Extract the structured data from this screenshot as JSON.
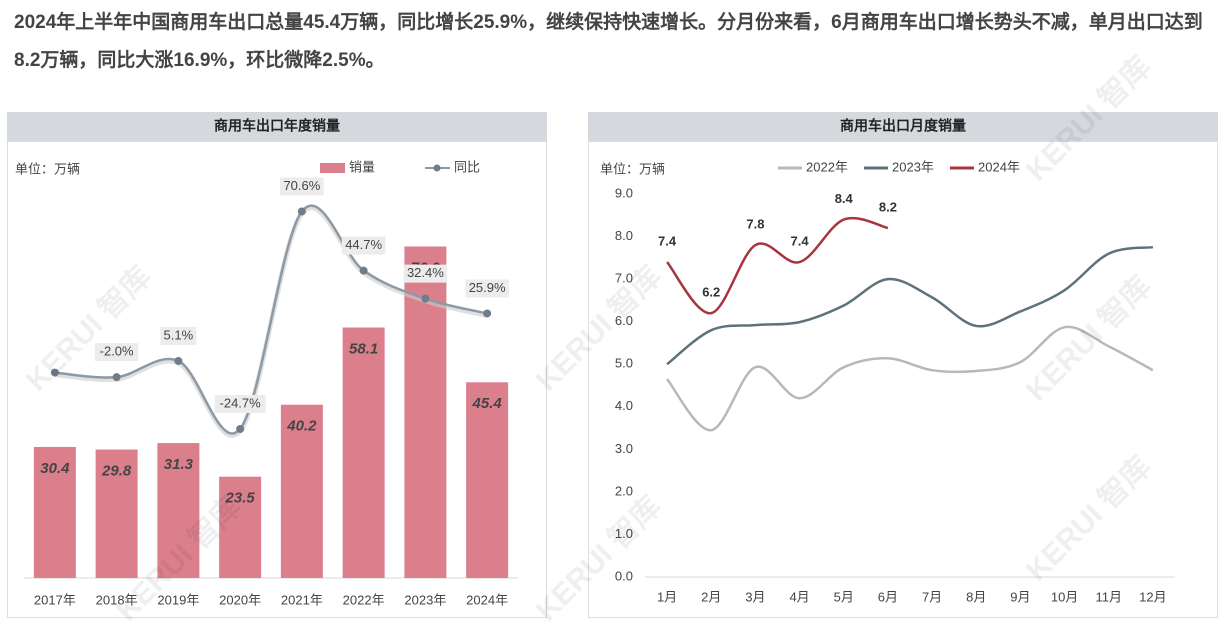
{
  "header": {
    "text": "2024年上半年中国商用车出口总量45.4万辆，同比增长25.9%，继续保持快速增长。分月份来看，6月商用车出口增长势头不减，单月出口达到8.2万辆，同比大涨16.9%，环比微降2.5%。"
  },
  "watermark": "KERUI 智库",
  "chart_data": [
    {
      "type": "bar",
      "title": "商用车出口年度销量",
      "unit_label": "单位：万辆",
      "categories": [
        "2017年",
        "2018年",
        "2019年",
        "2020年",
        "2021年",
        "2022年",
        "2023年",
        "2024年"
      ],
      "ylim": [
        0,
        90
      ],
      "y2lim": [
        -90,
        80
      ],
      "series": [
        {
          "name": "销量",
          "color": "#db7f8d",
          "values": [
            30.4,
            29.8,
            31.3,
            23.5,
            40.2,
            58.1,
            76.9,
            45.4
          ]
        },
        {
          "name": "同比",
          "color": "#8e99a6",
          "type": "line",
          "axis": "y2",
          "values": [
            0,
            -2.0,
            5.1,
            -24.7,
            70.6,
            44.7,
            32.4,
            25.9
          ],
          "value_labels": [
            null,
            "-2.0%",
            "5.1%",
            "-24.7%",
            "70.6%",
            "44.7%",
            "32.4%",
            "25.9%"
          ]
        }
      ]
    },
    {
      "type": "line",
      "title": "商用车出口月度销量",
      "unit_label": "单位：万辆",
      "categories": [
        "1月",
        "2月",
        "3月",
        "4月",
        "5月",
        "6月",
        "7月",
        "8月",
        "9月",
        "10月",
        "11月",
        "12月"
      ],
      "ylim": [
        0,
        9
      ],
      "yticks": [
        {
          "value": 0,
          "label": "0.0"
        },
        {
          "value": 1,
          "label": "1.0"
        },
        {
          "value": 2,
          "label": "2.0"
        },
        {
          "value": 3,
          "label": "3.0"
        },
        {
          "value": 4,
          "label": "4.0"
        },
        {
          "value": 5,
          "label": "5.0"
        },
        {
          "value": 6,
          "label": "6.0"
        },
        {
          "value": 7,
          "label": "7.0"
        },
        {
          "value": 8,
          "label": "8.0"
        },
        {
          "value": 9,
          "label": "9.0"
        }
      ],
      "series": [
        {
          "name": "2022年",
          "color": "#b4b9c0",
          "values": [
            4.65,
            3.45,
            4.93,
            4.2,
            4.93,
            5.14,
            4.86,
            4.84,
            5.05,
            5.87,
            5.42,
            4.86
          ]
        },
        {
          "name": "2023年",
          "color": "#5e7279",
          "values": [
            5.0,
            5.8,
            5.92,
            5.99,
            6.38,
            7.0,
            6.57,
            5.9,
            6.24,
            6.74,
            7.6,
            7.75
          ]
        },
        {
          "name": "2024年",
          "color": "#a8343f",
          "values": [
            7.4,
            6.2,
            7.8,
            7.4,
            8.4,
            8.2,
            null,
            null,
            null,
            null,
            null,
            null
          ],
          "show_labels": true
        }
      ]
    }
  ]
}
